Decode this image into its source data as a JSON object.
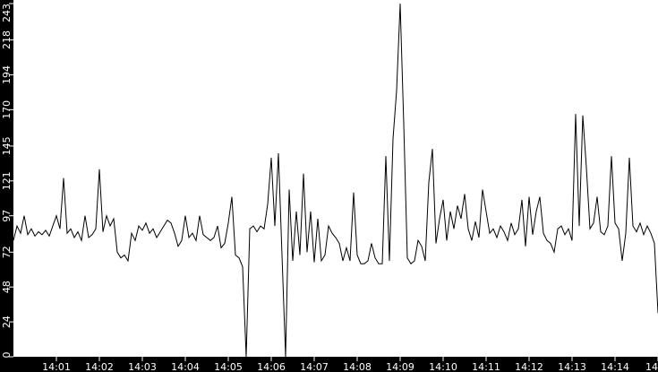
{
  "chart_data": {
    "type": "line",
    "title": "",
    "xlabel": "",
    "ylabel": "",
    "ylim": [
      0,
      243
    ],
    "xlim": [
      "14:00:00",
      "14:15:00"
    ],
    "grid": false,
    "colors": {
      "background": "#000000",
      "plot_area": "#ffffff",
      "line": "#000000",
      "text": "#ffffff"
    },
    "y_ticks": [
      "0",
      "24",
      "48",
      "72",
      "97",
      "121",
      "145",
      "170",
      "194",
      "218",
      "243"
    ],
    "x_ticks": [
      "14:01",
      "14:02",
      "14:03",
      "14:04",
      "14:05",
      "14:06",
      "14:07",
      "14:08",
      "14:09",
      "14:10",
      "14:11",
      "14:12",
      "14:13",
      "14:14",
      "14"
    ],
    "x": [
      "14:00:00",
      "14:00:05",
      "14:00:10",
      "14:00:15",
      "14:00:20",
      "14:00:25",
      "14:00:30",
      "14:00:35",
      "14:00:40",
      "14:00:45",
      "14:00:50",
      "14:00:55",
      "14:01:00",
      "14:01:05",
      "14:01:10",
      "14:01:15",
      "14:01:20",
      "14:01:25",
      "14:01:30",
      "14:01:35",
      "14:01:40",
      "14:01:45",
      "14:01:50",
      "14:01:55",
      "14:02:00",
      "14:02:05",
      "14:02:10",
      "14:02:15",
      "14:02:20",
      "14:02:25",
      "14:02:30",
      "14:02:35",
      "14:02:40",
      "14:02:45",
      "14:02:50",
      "14:02:55",
      "14:03:00",
      "14:03:05",
      "14:03:10",
      "14:03:15",
      "14:03:20",
      "14:03:25",
      "14:03:30",
      "14:03:35",
      "14:03:40",
      "14:03:45",
      "14:03:50",
      "14:03:55",
      "14:04:00",
      "14:04:05",
      "14:04:10",
      "14:04:15",
      "14:04:20",
      "14:04:25",
      "14:04:30",
      "14:04:35",
      "14:04:40",
      "14:04:45",
      "14:04:50",
      "14:04:55",
      "14:05:00",
      "14:05:05",
      "14:05:10",
      "14:05:15",
      "14:05:20",
      "14:05:25",
      "14:05:30",
      "14:05:35",
      "14:05:40",
      "14:05:45",
      "14:05:50",
      "14:05:55",
      "14:06:00",
      "14:06:05",
      "14:06:10",
      "14:06:15",
      "14:06:20",
      "14:06:25",
      "14:06:30",
      "14:06:35",
      "14:06:40",
      "14:06:45",
      "14:06:50",
      "14:06:55",
      "14:07:00",
      "14:07:05",
      "14:07:10",
      "14:07:15",
      "14:07:20",
      "14:07:25",
      "14:07:30",
      "14:07:35",
      "14:07:40",
      "14:07:45",
      "14:07:50",
      "14:07:55",
      "14:08:00",
      "14:08:05",
      "14:08:10",
      "14:08:15",
      "14:08:20",
      "14:08:25",
      "14:08:30",
      "14:08:35",
      "14:08:40",
      "14:08:45",
      "14:08:50",
      "14:08:55",
      "14:09:00",
      "14:09:05",
      "14:09:10",
      "14:09:15",
      "14:09:20",
      "14:09:25",
      "14:09:30",
      "14:09:35",
      "14:09:40",
      "14:09:45",
      "14:09:50",
      "14:09:55",
      "14:10:00",
      "14:10:05",
      "14:10:10",
      "14:10:15",
      "14:10:20",
      "14:10:25",
      "14:10:30",
      "14:10:35",
      "14:10:40",
      "14:10:45",
      "14:10:50",
      "14:10:55",
      "14:11:00",
      "14:11:05",
      "14:11:10",
      "14:11:15",
      "14:11:20",
      "14:11:25",
      "14:11:30",
      "14:11:35",
      "14:11:40",
      "14:11:45",
      "14:11:50",
      "14:11:55",
      "14:12:00",
      "14:12:05",
      "14:12:10",
      "14:12:15",
      "14:12:20",
      "14:12:25",
      "14:12:30",
      "14:12:35",
      "14:12:40",
      "14:12:45",
      "14:12:50",
      "14:12:55",
      "14:13:00",
      "14:13:05",
      "14:13:10",
      "14:13:15",
      "14:13:20",
      "14:13:25",
      "14:13:30",
      "14:13:35",
      "14:13:40",
      "14:13:45",
      "14:13:50",
      "14:13:55",
      "14:14:00",
      "14:14:05",
      "14:14:10",
      "14:14:15",
      "14:14:20",
      "14:14:25",
      "14:14:30",
      "14:14:35",
      "14:14:40",
      "14:14:45",
      "14:14:50",
      "14:14:55",
      "14:15:00"
    ],
    "series": [
      {
        "values": [
          80,
          90,
          85,
          97,
          84,
          88,
          83,
          86,
          84,
          87,
          83,
          90,
          97,
          88,
          123,
          85,
          88,
          82,
          86,
          80,
          97,
          82,
          84,
          88,
          129,
          86,
          97,
          90,
          95,
          72,
          68,
          70,
          66,
          85,
          80,
          90,
          87,
          92,
          85,
          88,
          82,
          86,
          90,
          94,
          92,
          85,
          76,
          80,
          97,
          82,
          85,
          80,
          97,
          84,
          82,
          80,
          82,
          90,
          75,
          78,
          92,
          110,
          70,
          68,
          62,
          0,
          88,
          90,
          86,
          90,
          88,
          105,
          137,
          90,
          140,
          70,
          0,
          115,
          66,
          100,
          70,
          126,
          72,
          100,
          65,
          95,
          66,
          70,
          90,
          85,
          82,
          78,
          66,
          75,
          66,
          113,
          70,
          64,
          64,
          66,
          78,
          68,
          64,
          64,
          138,
          66,
          150,
          183,
          243,
          160,
          68,
          64,
          66,
          80,
          76,
          66,
          120,
          143,
          78,
          95,
          108,
          80,
          100,
          88,
          104,
          95,
          112,
          88,
          80,
          93,
          82,
          115,
          100,
          85,
          88,
          82,
          90,
          86,
          80,
          92,
          84,
          88,
          108,
          76,
          110,
          84,
          100,
          110,
          85,
          80,
          78,
          72,
          88,
          90,
          84,
          88,
          80,
          167,
          90,
          166,
          130,
          88,
          92,
          110,
          86,
          84,
          90,
          138,
          92,
          88,
          66,
          85,
          137,
          90,
          86,
          92,
          84,
          90,
          85,
          78,
          30
        ]
      }
    ]
  }
}
